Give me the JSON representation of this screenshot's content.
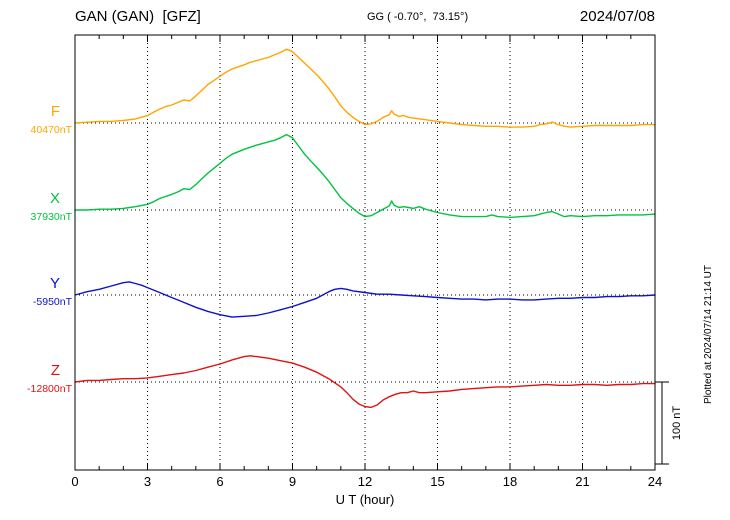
{
  "header": {
    "station": "GAN (GAN)  [GFZ]",
    "coords": "GG ( -0.70°,  73.15°)",
    "date": "2024/07/08"
  },
  "axis": {
    "xlabel": "U T (hour)"
  },
  "scale_bar": {
    "label": "100 nT",
    "nT": 100
  },
  "plotted_note": "Plotted at 2024/07/14 21:14 UT",
  "chart_data": {
    "type": "line",
    "title": "GAN (GAN)  [GFZ]  magnetogram  2024/07/08",
    "xlabel": "U T (hour)",
    "ylabel": "",
    "x_range": [
      0,
      24
    ],
    "x_ticks": [
      0,
      3,
      6,
      9,
      12,
      15,
      18,
      21,
      24
    ],
    "grid": "dotted vertical at 3h intervals, dotted horizontal at each series baseline",
    "scale_nT_per_bar": 100,
    "series": [
      {
        "name": "F",
        "baseline_label": "40470nT",
        "baseline_nT": 40470,
        "color": "#ffa500",
        "points": [
          [
            0,
            0
          ],
          [
            0.5,
            1
          ],
          [
            1,
            2
          ],
          [
            1.5,
            2
          ],
          [
            2,
            3
          ],
          [
            2.5,
            5
          ],
          [
            3,
            9
          ],
          [
            3.25,
            13
          ],
          [
            3.5,
            17
          ],
          [
            3.75,
            20
          ],
          [
            4,
            22
          ],
          [
            4.25,
            25
          ],
          [
            4.5,
            28
          ],
          [
            4.75,
            27
          ],
          [
            5,
            33
          ],
          [
            5.25,
            40
          ],
          [
            5.5,
            47
          ],
          [
            5.75,
            52
          ],
          [
            6,
            57
          ],
          [
            6.25,
            62
          ],
          [
            6.5,
            66
          ],
          [
            7,
            71
          ],
          [
            7.25,
            74
          ],
          [
            7.5,
            76
          ],
          [
            7.75,
            78
          ],
          [
            8,
            80
          ],
          [
            8.25,
            83
          ],
          [
            8.5,
            86
          ],
          [
            8.75,
            90
          ],
          [
            9,
            87
          ],
          [
            9.25,
            80
          ],
          [
            9.5,
            73
          ],
          [
            9.75,
            66
          ],
          [
            10,
            59
          ],
          [
            10.25,
            51
          ],
          [
            10.5,
            42
          ],
          [
            10.75,
            32
          ],
          [
            11,
            21
          ],
          [
            11.25,
            13
          ],
          [
            11.5,
            7
          ],
          [
            11.75,
            2
          ],
          [
            12,
            -2
          ],
          [
            12.25,
            -1
          ],
          [
            12.5,
            2
          ],
          [
            12.75,
            7
          ],
          [
            13,
            10
          ],
          [
            13.1,
            15
          ],
          [
            13.2,
            11
          ],
          [
            13.4,
            8
          ],
          [
            13.6,
            9
          ],
          [
            13.8,
            7
          ],
          [
            14,
            6
          ],
          [
            14.5,
            4
          ],
          [
            15,
            2
          ],
          [
            15.5,
            0
          ],
          [
            16,
            -2
          ],
          [
            16.5,
            -3
          ],
          [
            17,
            -4
          ],
          [
            17.5,
            -4
          ],
          [
            18,
            -5
          ],
          [
            18.5,
            -5
          ],
          [
            19,
            -4
          ],
          [
            19.25,
            -2
          ],
          [
            19.5,
            -1
          ],
          [
            19.75,
            1
          ],
          [
            20,
            -2
          ],
          [
            20.25,
            -4
          ],
          [
            20.5,
            -5
          ],
          [
            21,
            -4
          ],
          [
            21.5,
            -3
          ],
          [
            22,
            -3
          ],
          [
            22.5,
            -3
          ],
          [
            23,
            -3
          ],
          [
            23.5,
            -2
          ],
          [
            24,
            -2
          ]
        ]
      },
      {
        "name": "X",
        "baseline_label": "37930nT",
        "baseline_nT": 37930,
        "color": "#00c341",
        "points": [
          [
            0,
            0
          ],
          [
            0.5,
            0
          ],
          [
            1,
            1
          ],
          [
            1.5,
            1
          ],
          [
            2,
            2
          ],
          [
            2.5,
            4
          ],
          [
            3,
            7
          ],
          [
            3.25,
            10
          ],
          [
            3.5,
            14
          ],
          [
            4,
            19
          ],
          [
            4.25,
            22
          ],
          [
            4.5,
            26
          ],
          [
            4.75,
            25
          ],
          [
            5,
            31
          ],
          [
            5.25,
            38
          ],
          [
            5.5,
            45
          ],
          [
            5.75,
            51
          ],
          [
            6,
            57
          ],
          [
            6.25,
            63
          ],
          [
            6.5,
            68
          ],
          [
            7,
            74
          ],
          [
            7.5,
            79
          ],
          [
            8,
            83
          ],
          [
            8.25,
            85
          ],
          [
            8.5,
            88
          ],
          [
            8.75,
            92
          ],
          [
            9,
            88
          ],
          [
            9.25,
            78
          ],
          [
            9.5,
            68
          ],
          [
            9.75,
            60
          ],
          [
            10,
            52
          ],
          [
            10.25,
            44
          ],
          [
            10.5,
            35
          ],
          [
            10.75,
            25
          ],
          [
            11,
            15
          ],
          [
            11.25,
            8
          ],
          [
            11.5,
            2
          ],
          [
            11.75,
            -4
          ],
          [
            12,
            -8
          ],
          [
            12.25,
            -7
          ],
          [
            12.5,
            -3
          ],
          [
            12.75,
            1
          ],
          [
            13,
            5
          ],
          [
            13.1,
            11
          ],
          [
            13.2,
            6
          ],
          [
            13.4,
            3
          ],
          [
            13.6,
            4
          ],
          [
            13.8,
            3
          ],
          [
            14,
            2
          ],
          [
            14.25,
            4
          ],
          [
            14.5,
            1
          ],
          [
            15,
            -3
          ],
          [
            15.5,
            -6
          ],
          [
            16,
            -8
          ],
          [
            16.5,
            -8
          ],
          [
            17,
            -8
          ],
          [
            17.25,
            -6
          ],
          [
            17.5,
            -8
          ],
          [
            18,
            -9
          ],
          [
            18.5,
            -8
          ],
          [
            19,
            -7
          ],
          [
            19.25,
            -5
          ],
          [
            19.5,
            -3
          ],
          [
            19.75,
            -2
          ],
          [
            20,
            -5
          ],
          [
            20.25,
            -8
          ],
          [
            20.5,
            -7
          ],
          [
            21,
            -8
          ],
          [
            21.5,
            -7
          ],
          [
            22,
            -7
          ],
          [
            22.5,
            -6
          ],
          [
            23,
            -6
          ],
          [
            23.5,
            -6
          ],
          [
            24,
            -5
          ]
        ]
      },
      {
        "name": "Y",
        "baseline_label": "-5950nT",
        "baseline_nT": -5950,
        "color": "#0f0fcf",
        "points": [
          [
            0,
            0
          ],
          [
            0.5,
            4
          ],
          [
            1,
            7
          ],
          [
            1.5,
            11
          ],
          [
            2,
            15
          ],
          [
            2.25,
            16
          ],
          [
            2.5,
            14
          ],
          [
            2.75,
            12
          ],
          [
            3,
            9
          ],
          [
            3.5,
            3
          ],
          [
            4,
            -3
          ],
          [
            4.5,
            -9
          ],
          [
            5,
            -15
          ],
          [
            5.5,
            -20
          ],
          [
            6,
            -24
          ],
          [
            6.5,
            -27
          ],
          [
            7,
            -26
          ],
          [
            7.5,
            -25
          ],
          [
            8,
            -22
          ],
          [
            8.5,
            -18
          ],
          [
            9,
            -14
          ],
          [
            9.5,
            -9
          ],
          [
            10,
            -4
          ],
          [
            10.25,
            0
          ],
          [
            10.5,
            4
          ],
          [
            10.75,
            7
          ],
          [
            11,
            8
          ],
          [
            11.25,
            7
          ],
          [
            11.5,
            5
          ],
          [
            12,
            3
          ],
          [
            12.5,
            1
          ],
          [
            13,
            1
          ],
          [
            13.5,
            0
          ],
          [
            14,
            -1
          ],
          [
            14.5,
            -2
          ],
          [
            15,
            -3
          ],
          [
            15.5,
            -4
          ],
          [
            16,
            -5
          ],
          [
            16.5,
            -5
          ],
          [
            17,
            -6
          ],
          [
            17.5,
            -5
          ],
          [
            18,
            -5
          ],
          [
            18.5,
            -6
          ],
          [
            19,
            -6
          ],
          [
            19.5,
            -5
          ],
          [
            20,
            -4
          ],
          [
            20.5,
            -4
          ],
          [
            21,
            -3
          ],
          [
            21.5,
            -3
          ],
          [
            22,
            -2
          ],
          [
            22.5,
            -2
          ],
          [
            23,
            -1
          ],
          [
            23.5,
            -1
          ],
          [
            24,
            0
          ]
        ]
      },
      {
        "name": "Z",
        "baseline_label": "-12800nT",
        "baseline_nT": -12800,
        "color": "#e01212",
        "points": [
          [
            0,
            0
          ],
          [
            0.5,
            2
          ],
          [
            1,
            2
          ],
          [
            1.5,
            3
          ],
          [
            2,
            4
          ],
          [
            2.5,
            4
          ],
          [
            3,
            5
          ],
          [
            3.5,
            7
          ],
          [
            4,
            9
          ],
          [
            4.5,
            11
          ],
          [
            5,
            14
          ],
          [
            5.5,
            18
          ],
          [
            6,
            22
          ],
          [
            6.5,
            27
          ],
          [
            7,
            31
          ],
          [
            7.25,
            32
          ],
          [
            7.5,
            31
          ],
          [
            8,
            29
          ],
          [
            8.5,
            26
          ],
          [
            9,
            23
          ],
          [
            9.5,
            18
          ],
          [
            10,
            12
          ],
          [
            10.5,
            4
          ],
          [
            11,
            -6
          ],
          [
            11.25,
            -13
          ],
          [
            11.5,
            -21
          ],
          [
            11.75,
            -27
          ],
          [
            12,
            -30
          ],
          [
            12.25,
            -31
          ],
          [
            12.5,
            -28
          ],
          [
            12.75,
            -22
          ],
          [
            13,
            -18
          ],
          [
            13.25,
            -15
          ],
          [
            13.5,
            -13
          ],
          [
            13.75,
            -13
          ],
          [
            14,
            -11
          ],
          [
            14.25,
            -13
          ],
          [
            14.5,
            -13
          ],
          [
            15,
            -12
          ],
          [
            15.5,
            -11
          ],
          [
            16,
            -9
          ],
          [
            16.5,
            -8
          ],
          [
            17,
            -7
          ],
          [
            17.5,
            -6
          ],
          [
            18,
            -6
          ],
          [
            18.5,
            -5
          ],
          [
            19,
            -4
          ],
          [
            19.5,
            -3
          ],
          [
            20,
            -4
          ],
          [
            20.5,
            -4
          ],
          [
            21,
            -3
          ],
          [
            21.5,
            -3
          ],
          [
            22,
            -4
          ],
          [
            22.5,
            -3
          ],
          [
            23,
            -3
          ],
          [
            23.5,
            -2
          ],
          [
            24,
            -2
          ]
        ]
      }
    ]
  }
}
